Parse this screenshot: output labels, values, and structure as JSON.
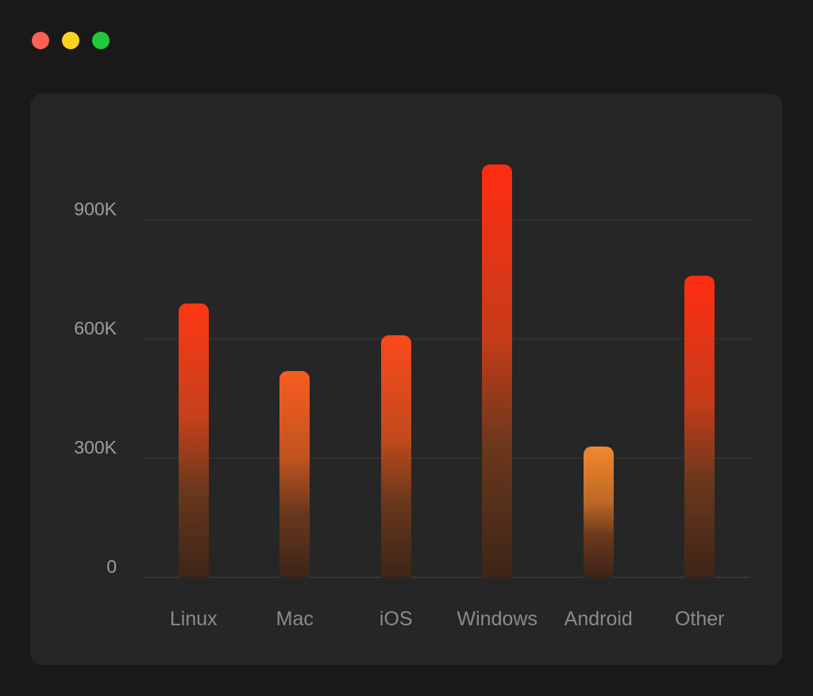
{
  "window": {
    "controls": {
      "close": "close",
      "minimize": "minimize",
      "zoom": "zoom"
    }
  },
  "colors": {
    "background": "#191919",
    "card": "#262626",
    "grid": "#383838",
    "axis": "#454545",
    "tick_text": "#9d9d9d",
    "category_text": "#8f8a84",
    "bar_red": "#ff2d12",
    "bar_orange": "#f08b2d",
    "bar_mid_brown": "#8a4a20",
    "bar_low_brown": "#6b381c",
    "bar_base": "#3c2518",
    "traffic_red": "#ff5f57",
    "traffic_yellow": "#fdd21e",
    "traffic_green": "#22c93d"
  },
  "chart_data": {
    "type": "bar",
    "title": "",
    "xlabel": "",
    "ylabel": "",
    "categories": [
      "Linux",
      "Mac",
      "iOS",
      "Windows",
      "Android",
      "Other"
    ],
    "values": [
      690000,
      520000,
      610000,
      1040000,
      330000,
      760000
    ],
    "yticks": [
      {
        "value": 0,
        "label": "0"
      },
      {
        "value": 300000,
        "label": "300K"
      },
      {
        "value": 600000,
        "label": "600K"
      },
      {
        "value": 900000,
        "label": "900K"
      }
    ],
    "ylim": [
      0,
      1120000
    ],
    "grid": "horizontal",
    "legend": "none",
    "bar_style": "vertical gradient, red at high values fading to dark brown at baseline, rounded tops"
  }
}
